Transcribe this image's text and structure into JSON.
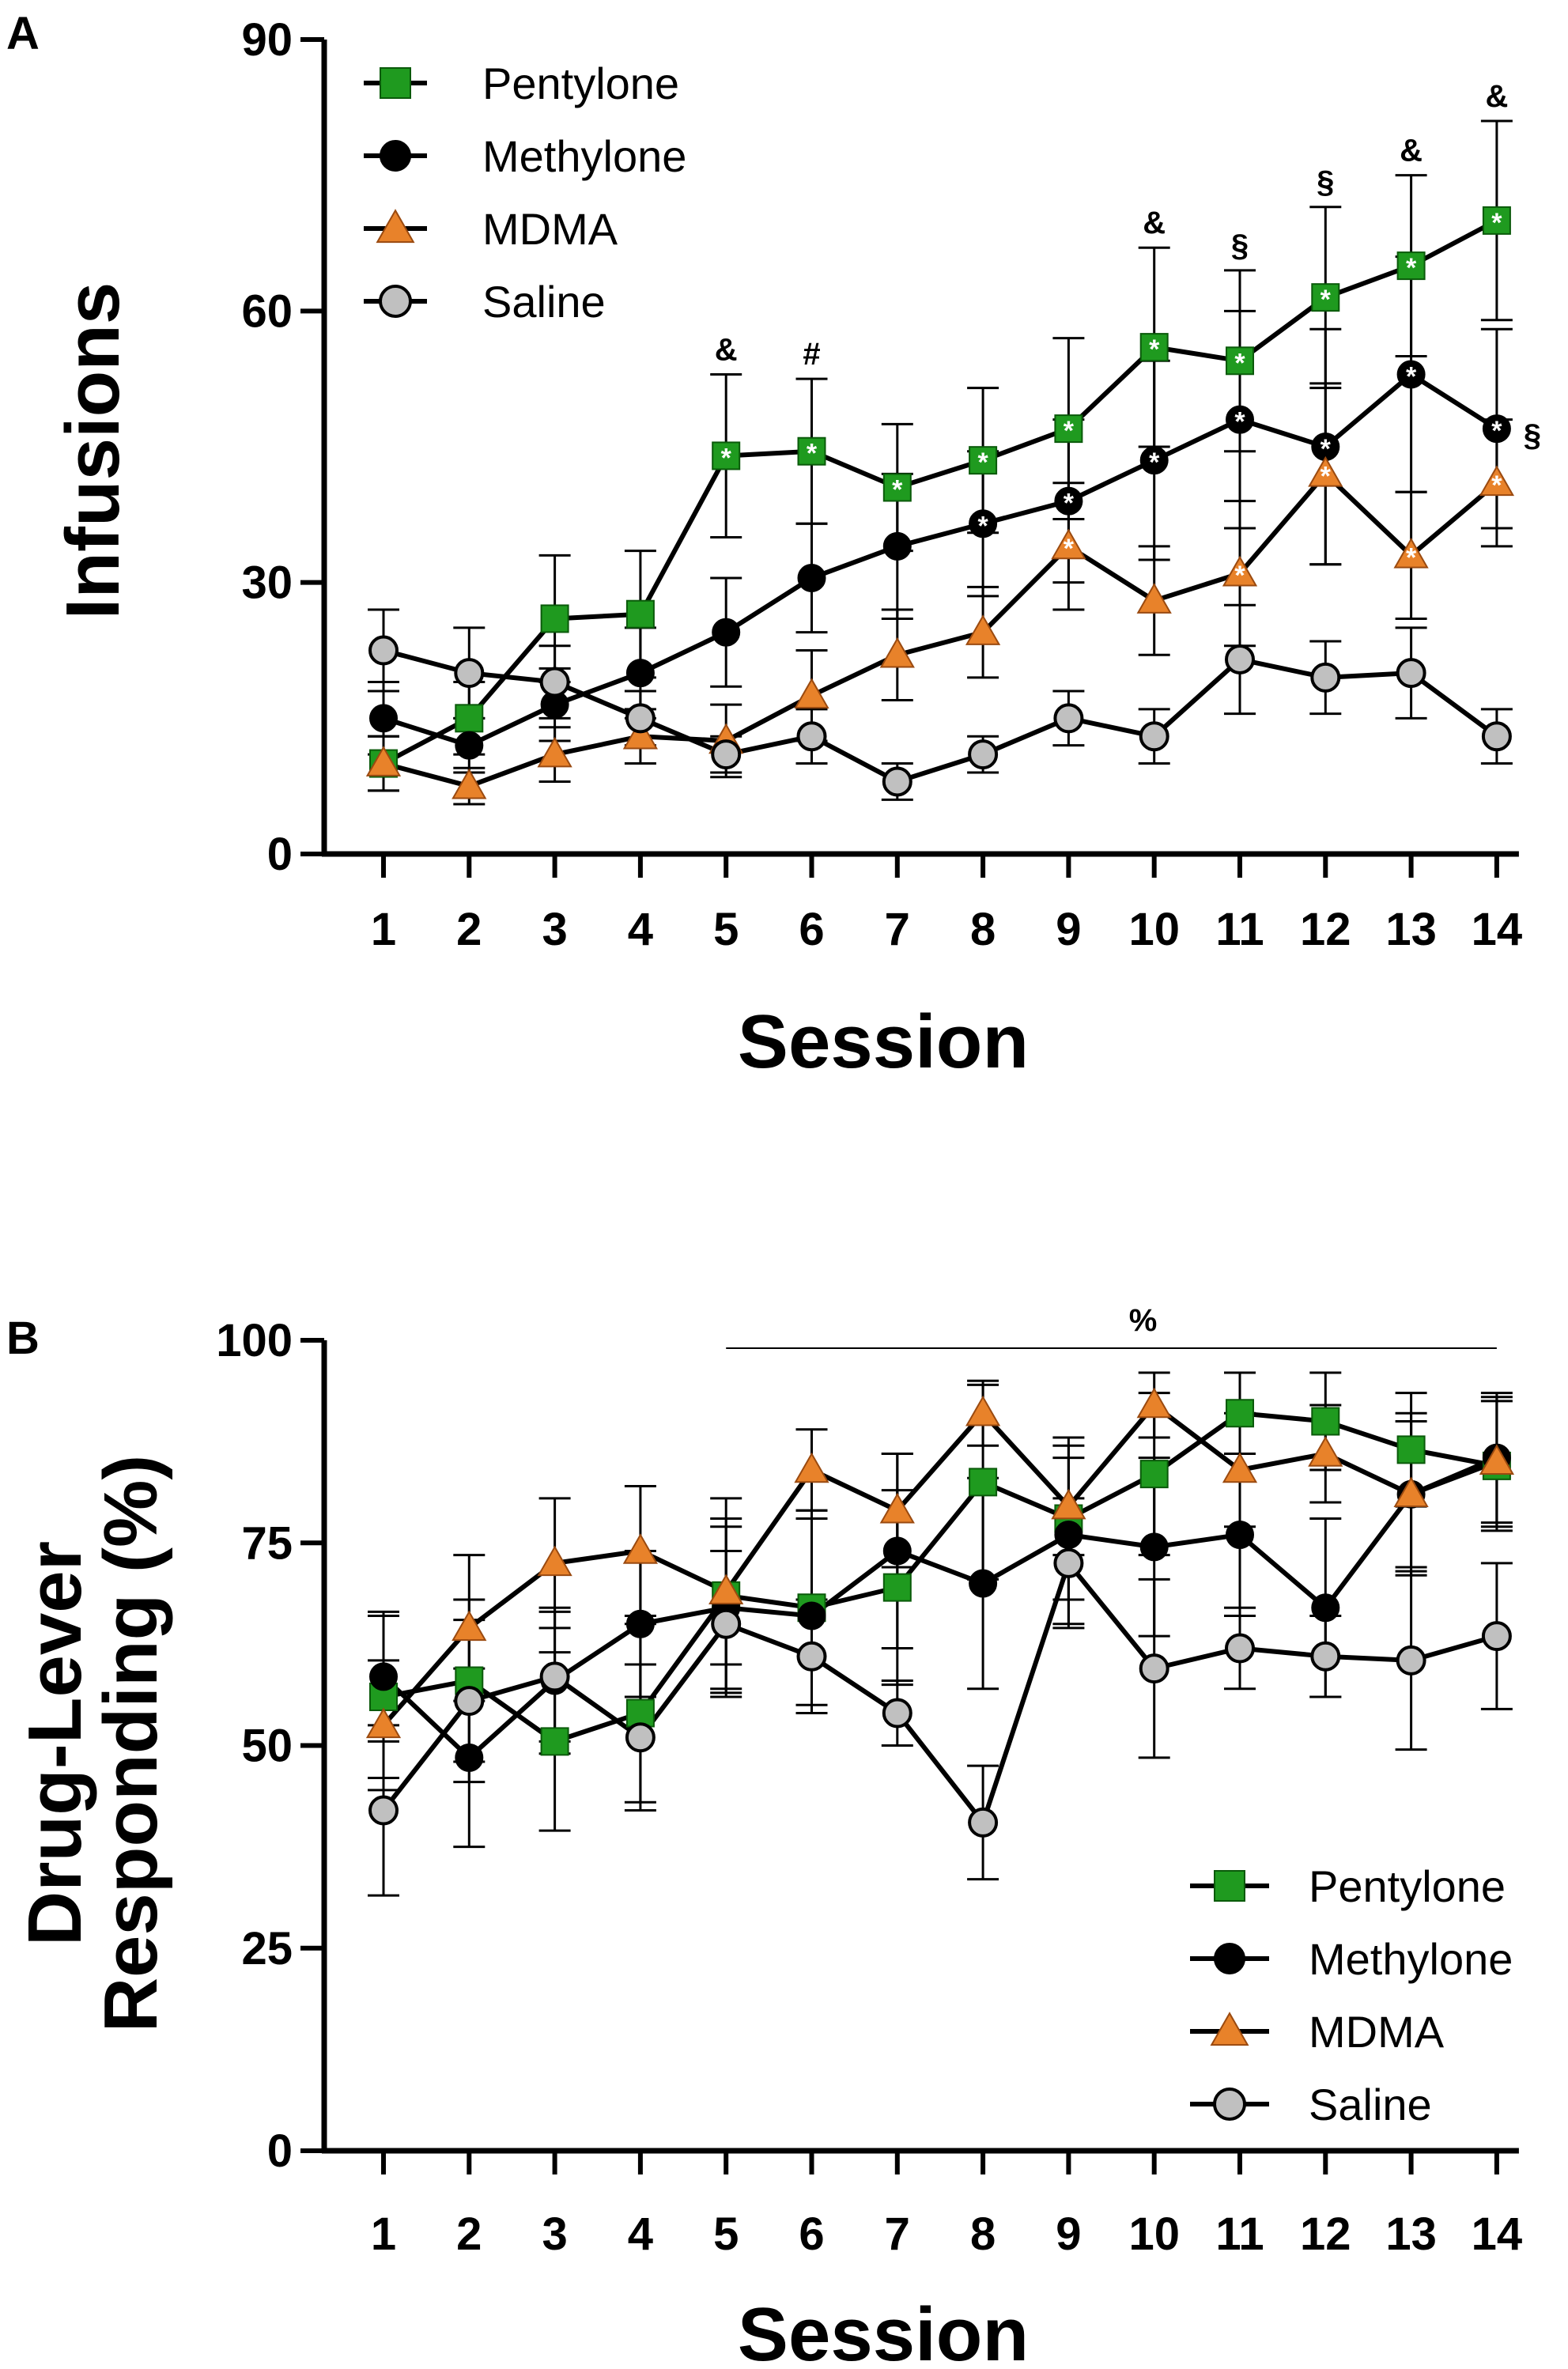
{
  "chart_data": [
    {
      "panel": "A",
      "type": "line",
      "xlabel": "Session",
      "ylabel": "Infusions",
      "ylim": [
        0,
        90
      ],
      "yticks": [
        0,
        30,
        60,
        90
      ],
      "categories": [
        "1",
        "2",
        "3",
        "4",
        "5",
        "6",
        "7",
        "8",
        "9",
        "10",
        "11",
        "12",
        "13",
        "14"
      ],
      "series": [
        {
          "name": "Pentylone",
          "marker": "square",
          "color": "#1f9a1f",
          "values": [
            10,
            15,
            26,
            26.5,
            44,
            44.5,
            40.5,
            43.5,
            47,
            56,
            54.5,
            61.5,
            65,
            70
          ],
          "err": [
            3,
            4,
            7,
            7,
            9,
            8,
            7,
            8,
            10,
            11,
            10,
            10,
            10,
            11
          ],
          "stars": [
            false,
            false,
            false,
            false,
            true,
            true,
            true,
            true,
            true,
            true,
            true,
            true,
            true,
            true
          ]
        },
        {
          "name": "Methylone",
          "marker": "circle",
          "color": "#000000",
          "values": [
            15,
            12,
            16.5,
            20,
            24.5,
            30.5,
            34,
            36.5,
            39,
            43.5,
            48,
            45,
            53,
            47
          ],
          "err": [
            4,
            3,
            4,
            5,
            6,
            6,
            8,
            8,
            9,
            11,
            12,
            13,
            13,
            11
          ],
          "stars": [
            false,
            false,
            false,
            false,
            false,
            false,
            false,
            true,
            true,
            true,
            true,
            true,
            true,
            true
          ]
        },
        {
          "name": "MDMA",
          "marker": "triangle",
          "color": "#e8822a",
          "values": [
            10,
            7.5,
            11,
            13,
            12.5,
            17.5,
            22,
            24.5,
            34,
            28,
            31,
            42,
            33,
            41
          ],
          "err": [
            3,
            2,
            3,
            3,
            4,
            5,
            5,
            5,
            7,
            6,
            8,
            10,
            7,
            7
          ],
          "stars": [
            false,
            false,
            false,
            false,
            false,
            false,
            false,
            false,
            true,
            false,
            true,
            true,
            true,
            true
          ]
        },
        {
          "name": "Saline",
          "marker": "circle-open",
          "color": "#c0c0c0",
          "values": [
            22.5,
            20,
            19,
            15,
            11,
            13,
            8,
            11,
            15,
            13,
            21.5,
            19.5,
            20,
            13
          ],
          "err": [
            4.5,
            5,
            4,
            3,
            2,
            3,
            2,
            2,
            3,
            3,
            6,
            4,
            5,
            3
          ],
          "stars": [
            false,
            false,
            false,
            false,
            false,
            false,
            false,
            false,
            false,
            false,
            false,
            false,
            false,
            false
          ]
        }
      ],
      "annotations": [
        {
          "session": "5",
          "symbol": "&"
        },
        {
          "session": "6",
          "symbol": "#"
        },
        {
          "session": "10",
          "symbol": "&"
        },
        {
          "session": "11",
          "symbol": "§"
        },
        {
          "session": "12",
          "symbol": "§"
        },
        {
          "session": "13",
          "symbol": "&"
        },
        {
          "session": "14",
          "symbol": "&"
        },
        {
          "session": "14",
          "symbol": "§",
          "position": "right-of-methylone"
        }
      ],
      "legend_position": "top-left"
    },
    {
      "panel": "B",
      "type": "line",
      "xlabel": "Session",
      "ylabel": "Drug-Lever Responding (%)",
      "ylabel_lines": [
        "Drug-Lever",
        "Responding (%)"
      ],
      "ylim": [
        0,
        100
      ],
      "yticks": [
        0,
        25,
        50,
        75,
        100
      ],
      "categories": [
        "1",
        "2",
        "3",
        "4",
        "5",
        "6",
        "7",
        "8",
        "9",
        "10",
        "11",
        "12",
        "13",
        "14"
      ],
      "series": [
        {
          "name": "Pentylone",
          "marker": "square",
          "color": "#1f9a1f",
          "values": [
            56,
            58,
            50.5,
            54,
            68.5,
            67,
            69.5,
            82.5,
            78,
            83.5,
            91,
            90,
            86.5,
            84.5
          ],
          "err": [
            10,
            10,
            11,
            11,
            12,
            12,
            12,
            12,
            10,
            10,
            5,
            6,
            7,
            8
          ]
        },
        {
          "name": "Methylone",
          "marker": "circle",
          "color": "#000000",
          "values": [
            58.5,
            48.5,
            58,
            65,
            67,
            66,
            74,
            70,
            76,
            74.5,
            76,
            67,
            81,
            85.5
          ],
          "err": [
            8,
            11,
            9,
            9,
            10,
            12,
            12,
            13,
            11,
            11,
            10,
            11,
            10,
            8
          ]
        },
        {
          "name": "MDMA",
          "marker": "triangle",
          "color": "#e8822a",
          "values": [
            52.5,
            64.5,
            72.5,
            74,
            69,
            84,
            79,
            91,
            79.5,
            92,
            84,
            86,
            81,
            85
          ],
          "err": [
            8,
            9,
            8,
            8,
            9,
            5,
            7,
            4,
            6,
            4,
            7,
            6,
            9,
            8
          ]
        },
        {
          "name": "Saline",
          "marker": "circle-open",
          "color": "#c0c0c0",
          "values": [
            42,
            55.5,
            58.5,
            51,
            65,
            61,
            54,
            40.5,
            72.5,
            59.5,
            62,
            61,
            60.5,
            63.5
          ],
          "err": [
            10.5,
            10,
            8,
            9,
            9,
            7,
            4,
            7,
            8,
            11,
            5,
            5,
            11,
            9
          ]
        }
      ],
      "significance_bar": {
        "from": "5",
        "to": "14",
        "symbol": "%"
      },
      "legend_position": "bottom-right"
    }
  ]
}
